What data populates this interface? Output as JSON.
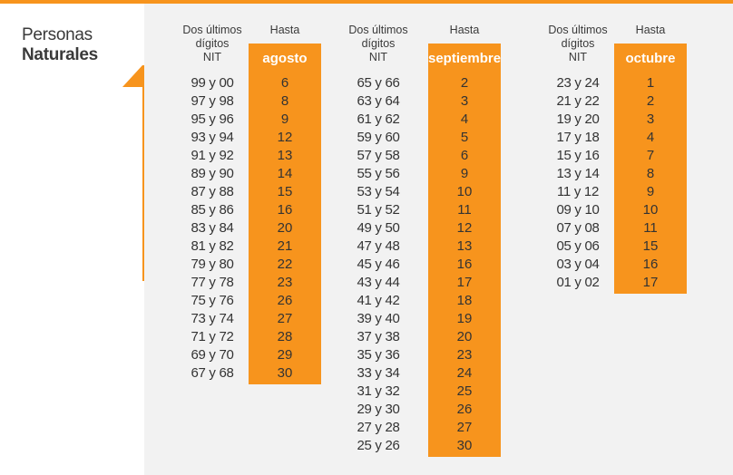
{
  "title": {
    "line1": "Personas",
    "line2": "Naturales"
  },
  "colors": {
    "accent": "#f7941d",
    "panel": "#f2f2f2"
  },
  "columns": [
    {
      "digits_header": [
        "Dos últimos",
        "dígitos",
        "NIT"
      ],
      "hasta_header": "Hasta",
      "month": "agosto",
      "rows": [
        {
          "nit": "99 y 00",
          "day": "6"
        },
        {
          "nit": "97 y 98",
          "day": "8"
        },
        {
          "nit": "95 y 96",
          "day": "9"
        },
        {
          "nit": "93 y 94",
          "day": "12"
        },
        {
          "nit": "91 y 92",
          "day": "13"
        },
        {
          "nit": "89 y 90",
          "day": "14"
        },
        {
          "nit": "87 y 88",
          "day": "15"
        },
        {
          "nit": "85 y 86",
          "day": "16"
        },
        {
          "nit": "83 y 84",
          "day": "20"
        },
        {
          "nit": "81 y 82",
          "day": "21"
        },
        {
          "nit": "79 y 80",
          "day": "22"
        },
        {
          "nit": "77 y 78",
          "day": "23"
        },
        {
          "nit": "75 y 76",
          "day": "26"
        },
        {
          "nit": "73 y 74",
          "day": "27"
        },
        {
          "nit": "71 y 72",
          "day": "28"
        },
        {
          "nit": "69 y 70",
          "day": "29"
        },
        {
          "nit": "67 y 68",
          "day": "30"
        }
      ]
    },
    {
      "digits_header": [
        "Dos últimos",
        "dígitos",
        "NIT"
      ],
      "hasta_header": "Hasta",
      "month": "septiembre",
      "rows": [
        {
          "nit": "65 y 66",
          "day": "2"
        },
        {
          "nit": "63 y 64",
          "day": "3"
        },
        {
          "nit": "61 y 62",
          "day": "4"
        },
        {
          "nit": "59 y 60",
          "day": "5"
        },
        {
          "nit": "57 y 58",
          "day": "6"
        },
        {
          "nit": "55 y 56",
          "day": "9"
        },
        {
          "nit": "53 y 54",
          "day": "10"
        },
        {
          "nit": "51 y 52",
          "day": "11"
        },
        {
          "nit": "49 y 50",
          "day": "12"
        },
        {
          "nit": "47 y 48",
          "day": "13"
        },
        {
          "nit": "45 y 46",
          "day": "16"
        },
        {
          "nit": "43 y 44",
          "day": "17"
        },
        {
          "nit": "41 y 42",
          "day": "18"
        },
        {
          "nit": "39 y 40",
          "day": "19"
        },
        {
          "nit": "37 y 38",
          "day": "20"
        },
        {
          "nit": "35 y 36",
          "day": "23"
        },
        {
          "nit": "33 y 34",
          "day": "24"
        },
        {
          "nit": "31 y 32",
          "day": "25"
        },
        {
          "nit": "29 y 30",
          "day": "26"
        },
        {
          "nit": "27 y 28",
          "day": "27"
        },
        {
          "nit": "25 y 26",
          "day": "30"
        }
      ]
    },
    {
      "digits_header": [
        "Dos últimos",
        "dígitos",
        "NIT"
      ],
      "hasta_header": "Hasta",
      "month": "octubre",
      "rows": [
        {
          "nit": "23 y 24",
          "day": "1"
        },
        {
          "nit": "21 y 22",
          "day": "2"
        },
        {
          "nit": "19 y 20",
          "day": "3"
        },
        {
          "nit": "17 y 18",
          "day": "4"
        },
        {
          "nit": "15 y 16",
          "day": "7"
        },
        {
          "nit": "13 y 14",
          "day": "8"
        },
        {
          "nit": "11 y 12",
          "day": "9"
        },
        {
          "nit": "09 y 10",
          "day": "10"
        },
        {
          "nit": "07 y 08",
          "day": "11"
        },
        {
          "nit": "05 y 06",
          "day": "15"
        },
        {
          "nit": "03 y 04",
          "day": "16"
        },
        {
          "nit": "01 y 02",
          "day": "17"
        }
      ]
    }
  ]
}
